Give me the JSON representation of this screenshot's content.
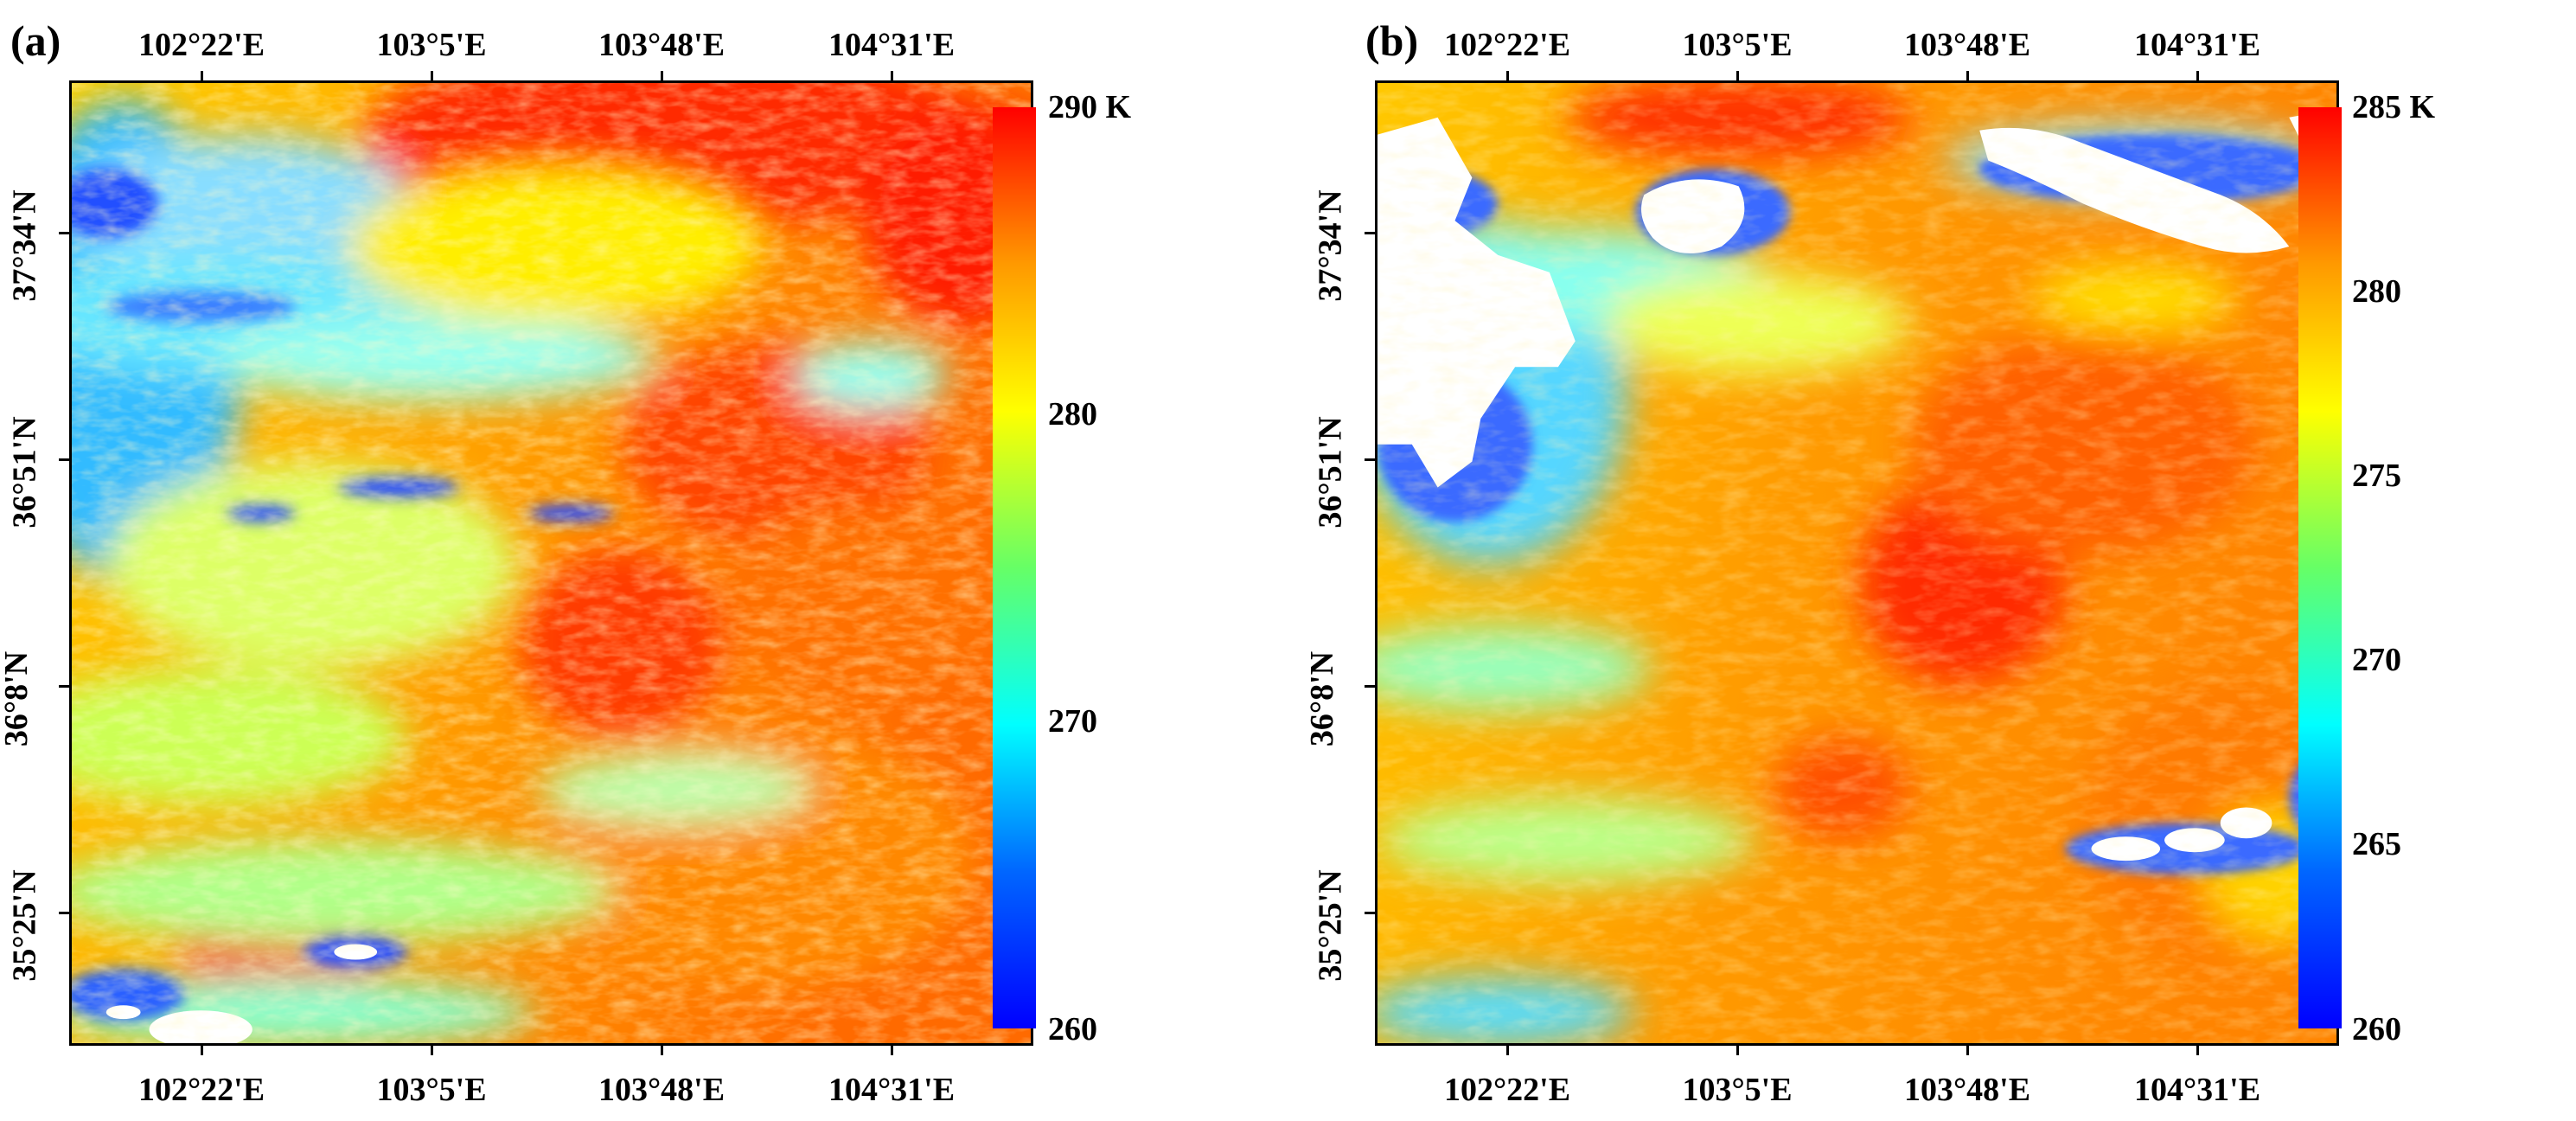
{
  "panels": [
    {
      "label": "(a)",
      "x_ticks": [
        "102°22'E",
        "103°5'E",
        "103°48'E",
        "104°31'E"
      ],
      "y_ticks": [
        "37°34'N",
        "36°51'N",
        "36°8'N",
        "35°25'N"
      ],
      "colorbar": {
        "min": 260,
        "max": 290,
        "ticks": [
          "290 K",
          "280",
          "270",
          "260"
        ]
      },
      "legend_units": "K"
    },
    {
      "label": "(b)",
      "x_ticks": [
        "102°22'E",
        "103°5'E",
        "103°48'E",
        "104°31'E"
      ],
      "y_ticks": [
        "37°34'N",
        "36°51'N",
        "36°8'N",
        "35°25'N"
      ],
      "colorbar": {
        "min": 260,
        "max": 285,
        "ticks": [
          "285 K",
          "280",
          "275",
          "270",
          "265",
          "260"
        ]
      },
      "legend_units": "K"
    }
  ],
  "colormap": [
    "#0000ff",
    "#00aaff",
    "#00ffff",
    "#55ff88",
    "#ffff00",
    "#ffaa00",
    "#ff0000"
  ]
}
